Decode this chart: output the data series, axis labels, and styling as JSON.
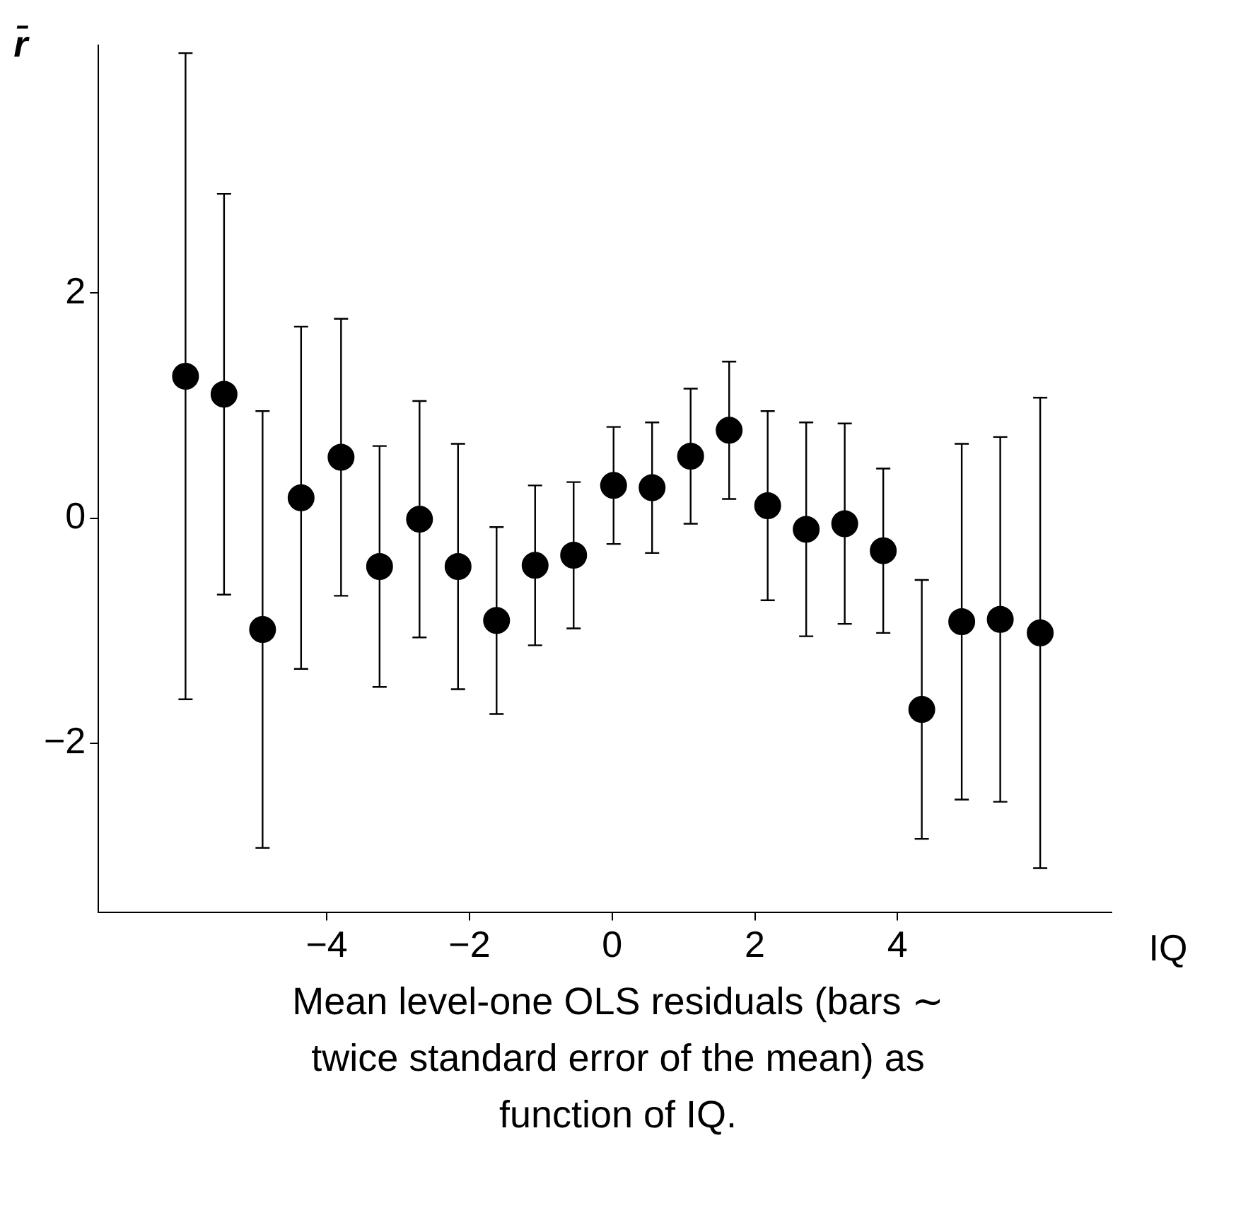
{
  "chart_data": {
    "type": "scatter",
    "ylabel": "r̄",
    "xlabel": "IQ",
    "annotations": [
      "Mean level-one OLS residuals (bars ∼ twice standard error of the mean) as function of IQ."
    ],
    "x": [
      -5.98,
      -5.44,
      -4.9,
      -4.36,
      -3.8,
      -3.26,
      -2.7,
      -2.16,
      -1.62,
      -1.08,
      -0.54,
      0.02,
      0.56,
      1.1,
      1.64,
      2.18,
      2.72,
      3.26,
      3.8,
      4.34,
      4.9,
      5.44,
      6.0
    ],
    "series": [
      {
        "color": "#000000",
        "values": [
          1.26,
          1.1,
          -0.99,
          0.18,
          0.54,
          -0.43,
          -0.01,
          -0.43,
          -0.91,
          -0.42,
          -0.33,
          0.29,
          0.27,
          0.55,
          0.78,
          0.11,
          -0.1,
          -0.05,
          -0.29,
          -1.7,
          -0.92,
          -0.9,
          -1.02
        ],
        "errors": [
          2.87,
          1.78,
          1.94,
          1.52,
          1.23,
          1.07,
          1.05,
          1.09,
          0.83,
          0.71,
          0.65,
          0.52,
          0.58,
          0.6,
          0.61,
          0.84,
          0.95,
          0.89,
          0.73,
          1.15,
          1.58,
          1.62,
          2.09
        ]
      }
    ],
    "xlim": [
      -7.2,
      7
    ],
    "ylim": [
      -3.5,
      4.2
    ],
    "xticks": [
      {
        "value": -4,
        "label": "−4"
      },
      {
        "value": -2,
        "label": "−2"
      },
      0,
      2,
      4
    ],
    "yticks": [
      {
        "value": -2,
        "label": "−2"
      },
      0,
      2
    ],
    "grid": false,
    "legend": false,
    "marker": "circle"
  }
}
